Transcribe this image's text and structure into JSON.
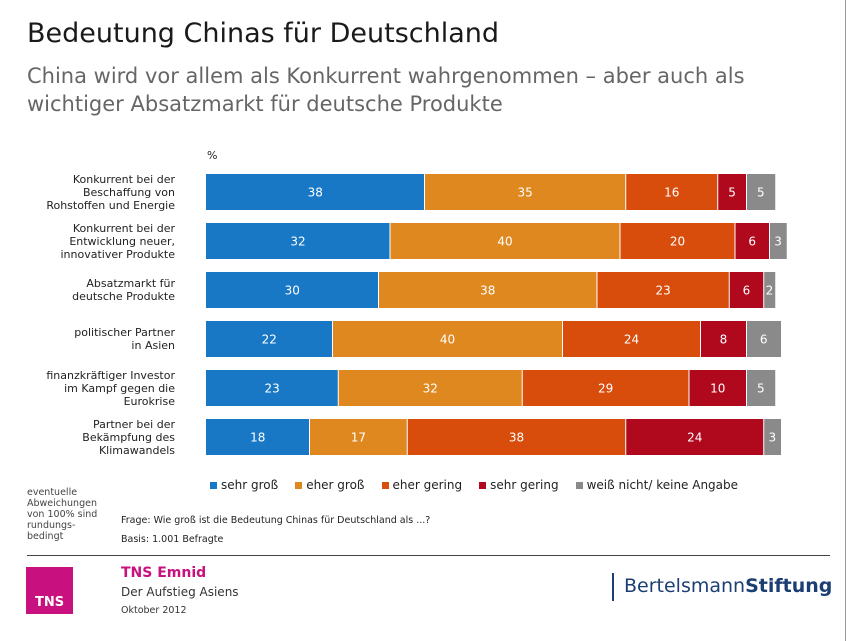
{
  "title": "Bedeutung Chinas für Deutschland",
  "subtitle": "China wird vor allem als Konkurrent wahrgenommen – aber auch als wichtiger Absatzmarkt für deutsche Produkte",
  "unit": "%",
  "colors": {
    "sehr_gross": "#1878c6",
    "eher_gross": "#e08820",
    "eher_gering": "#d84c0c",
    "sehr_gering": "#b0081c",
    "keine_angabe": "#8a8a8a"
  },
  "chart_data": {
    "type": "bar",
    "orientation": "horizontal",
    "stacked": true,
    "unit": "%",
    "categories": [
      "Konkurrent bei der Beschaffung von Rohstoffen und Energie",
      "Konkurrent bei der Entwicklung neuer, innovativer Produkte",
      "Absatzmarkt für deutsche Produkte",
      "politischer Partner in Asien",
      "finanzkräftiger Investor im Kampf gegen die Eurokrise",
      "Partner bei der Bekämpfung des Klimawandels"
    ],
    "category_lines": [
      [
        "Konkurrent bei der",
        "Beschaffung von",
        "Rohstoffen und Energie"
      ],
      [
        "Konkurrent bei der",
        "Entwicklung neuer,",
        "innovativer Produkte"
      ],
      [
        "Absatzmarkt für",
        "deutsche Produkte"
      ],
      [
        "politischer Partner",
        "in Asien"
      ],
      [
        "finanzkräftiger Investor",
        "im Kampf gegen die",
        "Eurokrise"
      ],
      [
        "Partner bei der",
        "Bekämpfung des",
        "Klimawandels"
      ]
    ],
    "series": [
      {
        "name": "sehr groß",
        "values": [
          38,
          32,
          30,
          22,
          23,
          18
        ]
      },
      {
        "name": "eher groß",
        "values": [
          35,
          40,
          38,
          40,
          32,
          17
        ]
      },
      {
        "name": "eher gering",
        "values": [
          16,
          20,
          23,
          24,
          29,
          38
        ]
      },
      {
        "name": "sehr gering",
        "values": [
          5,
          6,
          6,
          8,
          10,
          24
        ]
      },
      {
        "name": "weiß nicht/ keine Angabe",
        "values": [
          5,
          3,
          2,
          6,
          5,
          3
        ]
      }
    ],
    "xlim": [
      0,
      100
    ]
  },
  "note": "eventuelle Abweichungen von 100% sind rundungs- bedingt",
  "question": "Frage: Wie groß ist die Bedeutung Chinas für Deutschland als ...?",
  "basis": "Basis:  1.001 Befragte",
  "footer": {
    "logo_text": "TNS",
    "org": "TNS Emnid",
    "study": "Der Aufstieg Asiens",
    "date": "Oktober 2012",
    "brand_regular": "Bertelsmann",
    "brand_bold": "Stiftung"
  }
}
